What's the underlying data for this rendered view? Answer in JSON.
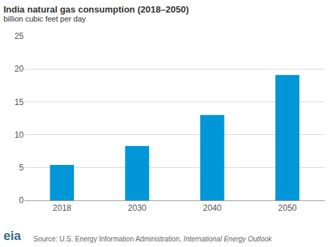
{
  "chart_data": {
    "type": "bar",
    "title": "India natural gas consumption (2018–2050)",
    "subtitle": "billion cubic feet per day",
    "categories": [
      "2018",
      "2030",
      "2040",
      "2050"
    ],
    "values": [
      5.4,
      8.3,
      13.0,
      19.1
    ],
    "color": "#0096d7",
    "ylim": [
      0,
      25
    ],
    "yticks": [
      0,
      5,
      10,
      15,
      20,
      25
    ],
    "grid": true,
    "source": {
      "prefix": "Source: U.S. Energy Information Administration, ",
      "publication": "International Energy Outlook"
    },
    "logo": "eia"
  }
}
